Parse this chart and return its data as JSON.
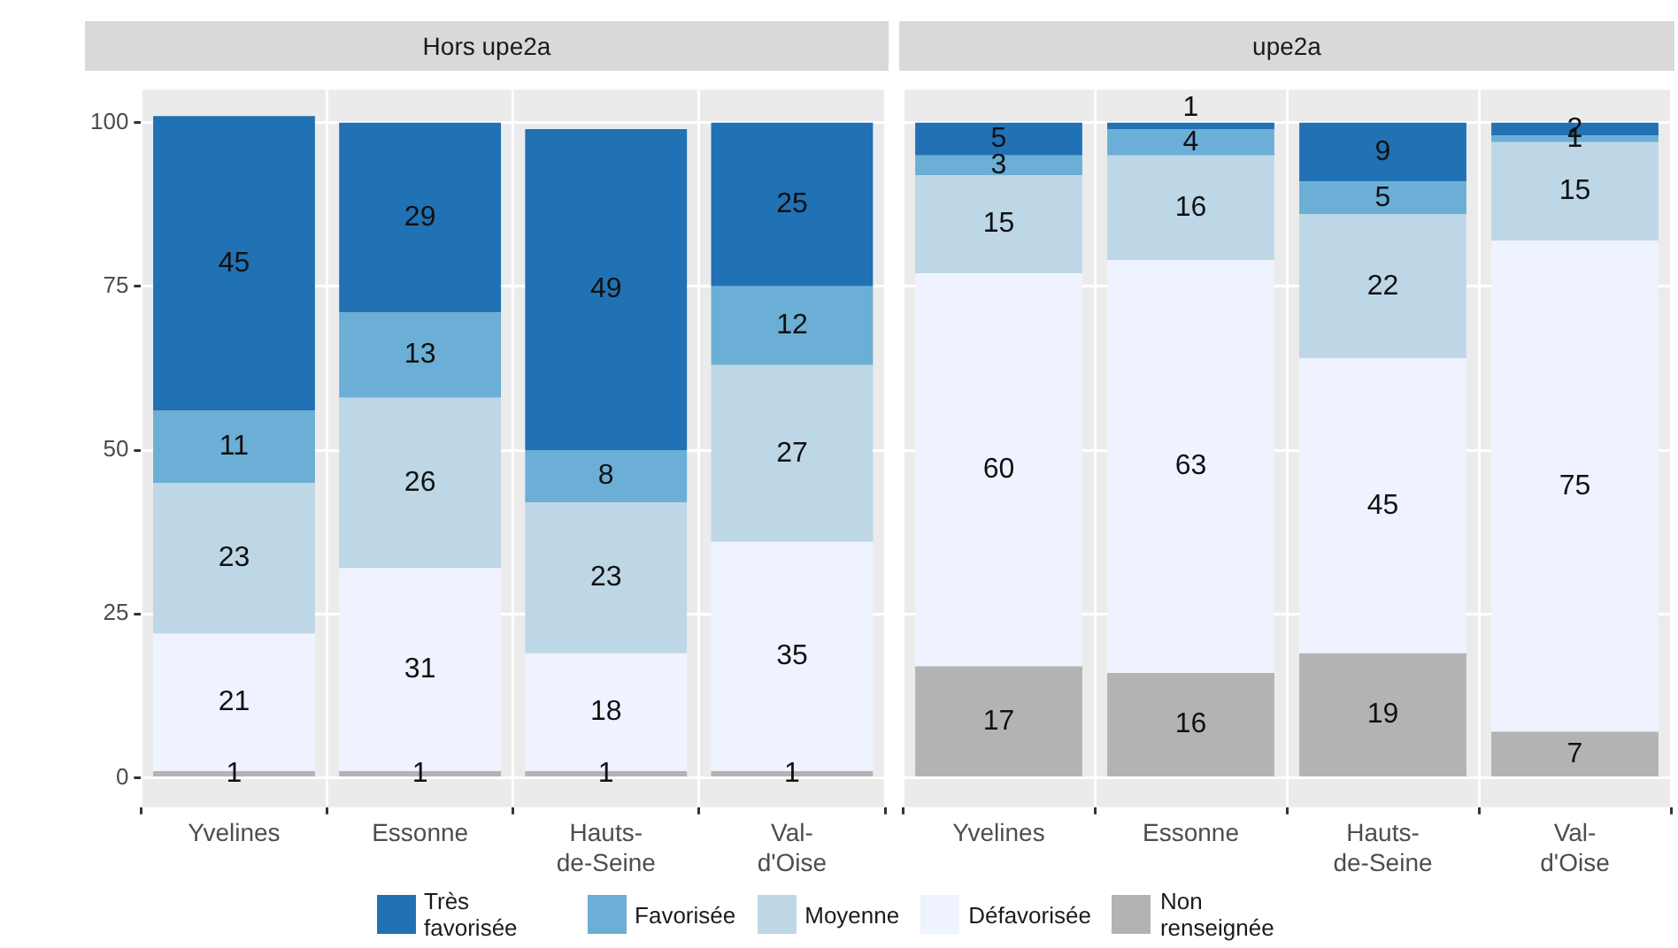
{
  "chart_data": [
    {
      "type": "bar",
      "title": "Hors upe2a",
      "stacked": true,
      "data_labels": true,
      "grid": true,
      "legend": "bottom",
      "ylim": [
        -4.5,
        105
      ],
      "yticks": [
        0,
        25,
        50,
        75,
        100
      ],
      "categories": [
        "Yvelines",
        "Essonne",
        "Hauts-de-Seine",
        "Val-d'Oise"
      ],
      "series": [
        {
          "name": "Non renseignée",
          "color": "#b3b3b3",
          "values": [
            1,
            1,
            1,
            1
          ]
        },
        {
          "name": "Défavorisée",
          "color": "#eff3ff",
          "values": [
            21,
            31,
            18,
            35
          ]
        },
        {
          "name": "Moyenne",
          "color": "#bdd7e7",
          "values": [
            23,
            26,
            23,
            27
          ]
        },
        {
          "name": "Favorisée",
          "color": "#6baed6",
          "values": [
            11,
            13,
            8,
            12
          ]
        },
        {
          "name": "Très favorisée",
          "color": "#2171b5",
          "values": [
            45,
            29,
            49,
            25
          ]
        }
      ]
    },
    {
      "type": "bar",
      "title": "upe2a",
      "stacked": true,
      "data_labels": true,
      "grid": true,
      "tick_labels": "x",
      "ylim": [
        -4.5,
        105
      ],
      "yticks": [
        0,
        25,
        50,
        75,
        100
      ],
      "categories": [
        "Yvelines",
        "Essonne",
        "Hauts-de-Seine",
        "Val-d'Oise"
      ],
      "series": [
        {
          "color": "#b3b3b3",
          "values": [
            17,
            16,
            19,
            7
          ]
        },
        {
          "color": "#eff3ff",
          "values": [
            60,
            63,
            45,
            75
          ]
        },
        {
          "color": "#bdd7e7",
          "values": [
            15,
            16,
            22,
            15
          ]
        },
        {
          "color": "#6baed6",
          "values": [
            3,
            4,
            5,
            1
          ]
        },
        {
          "color": "#2171b5",
          "values": [
            5,
            1,
            9,
            2
          ]
        }
      ]
    }
  ]
}
